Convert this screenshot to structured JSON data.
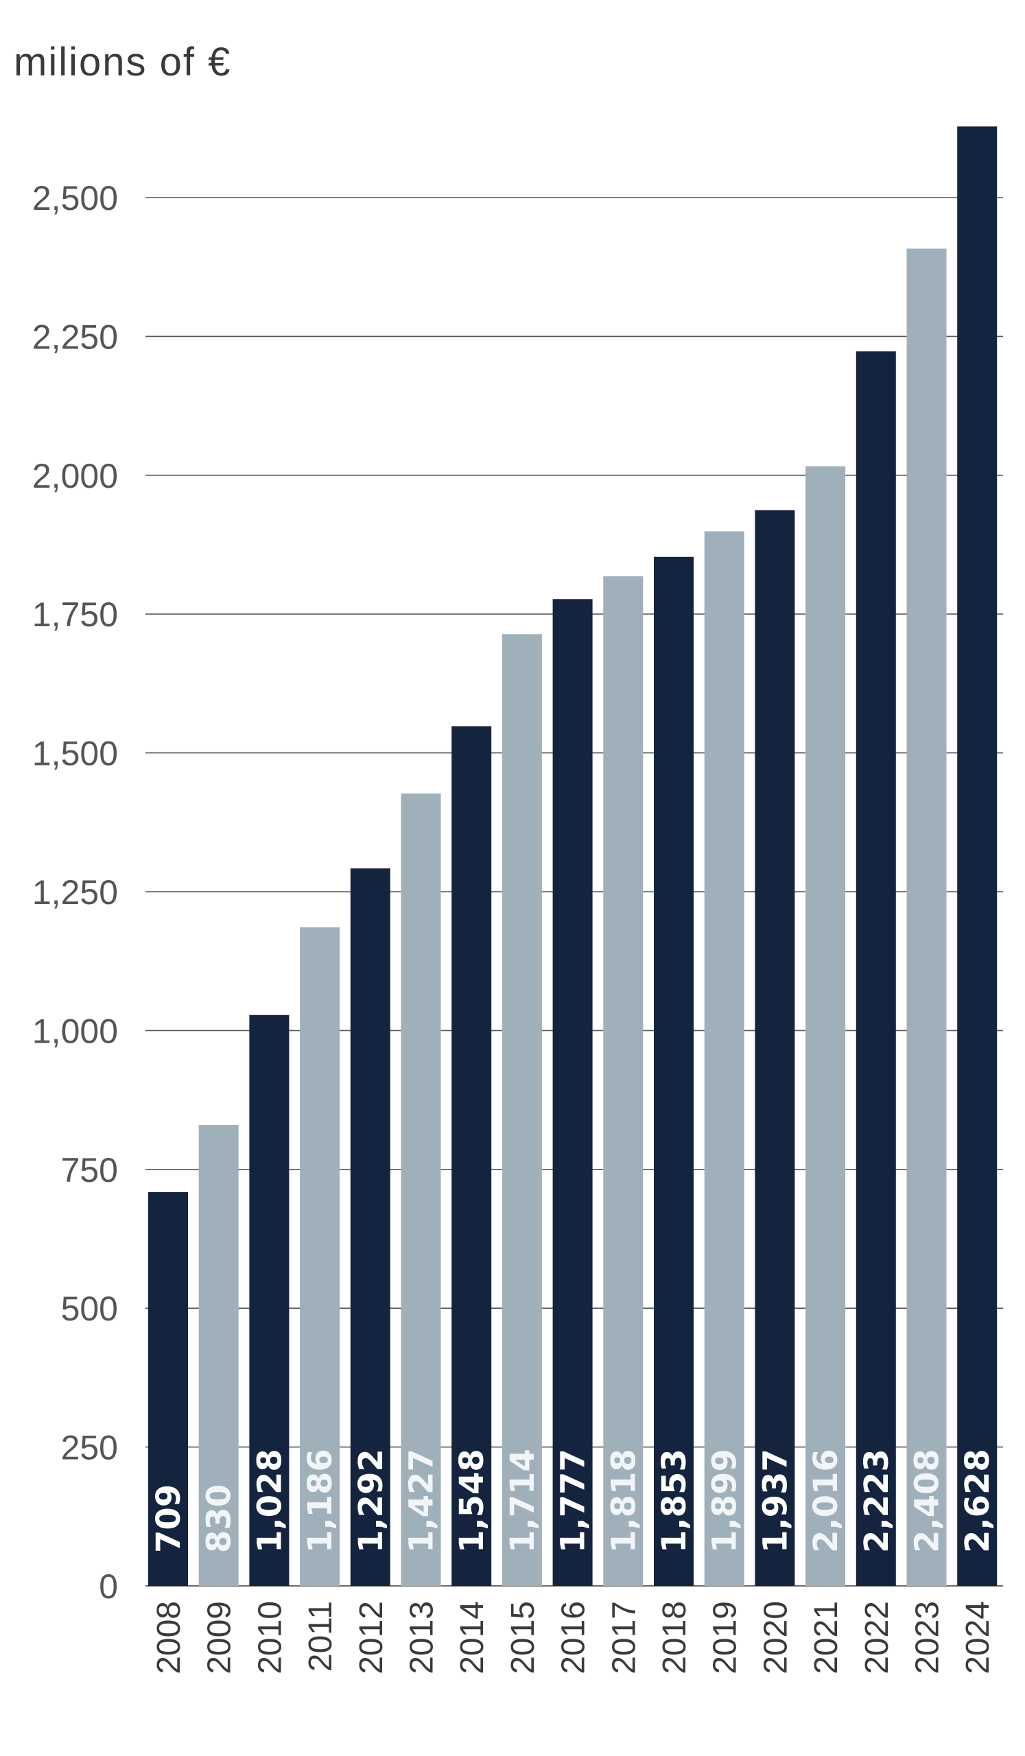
{
  "chart_data": {
    "type": "bar",
    "unit_label": "milions of €",
    "title": "",
    "xlabel": "",
    "ylabel": "milions of €",
    "categories": [
      "2008",
      "2009",
      "2010",
      "2011",
      "2012",
      "2013",
      "2014",
      "2015",
      "2016",
      "2017",
      "2018",
      "2019",
      "2020",
      "2021",
      "2022",
      "2023",
      "2024"
    ],
    "values": [
      709,
      830,
      1028,
      1186,
      1292,
      1427,
      1548,
      1714,
      1777,
      1818,
      1853,
      1899,
      1937,
      2016,
      2223,
      2408,
      2628
    ],
    "value_labels": [
      "709",
      "830",
      "1,028",
      "1,186",
      "1,292",
      "1,427",
      "1,548",
      "1,714",
      "1,777",
      "1,818",
      "1,853",
      "1,899",
      "1,937",
      "2,016",
      "2,223",
      "2,408",
      "2,628"
    ],
    "ylim": [
      0,
      2628
    ],
    "yticks": [
      0,
      250,
      500,
      750,
      1000,
      1250,
      1500,
      1750,
      2000,
      2250,
      2500
    ],
    "ytick_labels": [
      "0",
      "250",
      "500",
      "750",
      "1,000",
      "1,250",
      "1,500",
      "1,750",
      "2,000",
      "2,250",
      "2,500"
    ],
    "grid": true,
    "legend": "none",
    "colors": {
      "dark": "#14243f",
      "light": "#9fb0bb",
      "label_on_dark": "#ffffff",
      "label_on_light": "#f2f5f7"
    }
  }
}
